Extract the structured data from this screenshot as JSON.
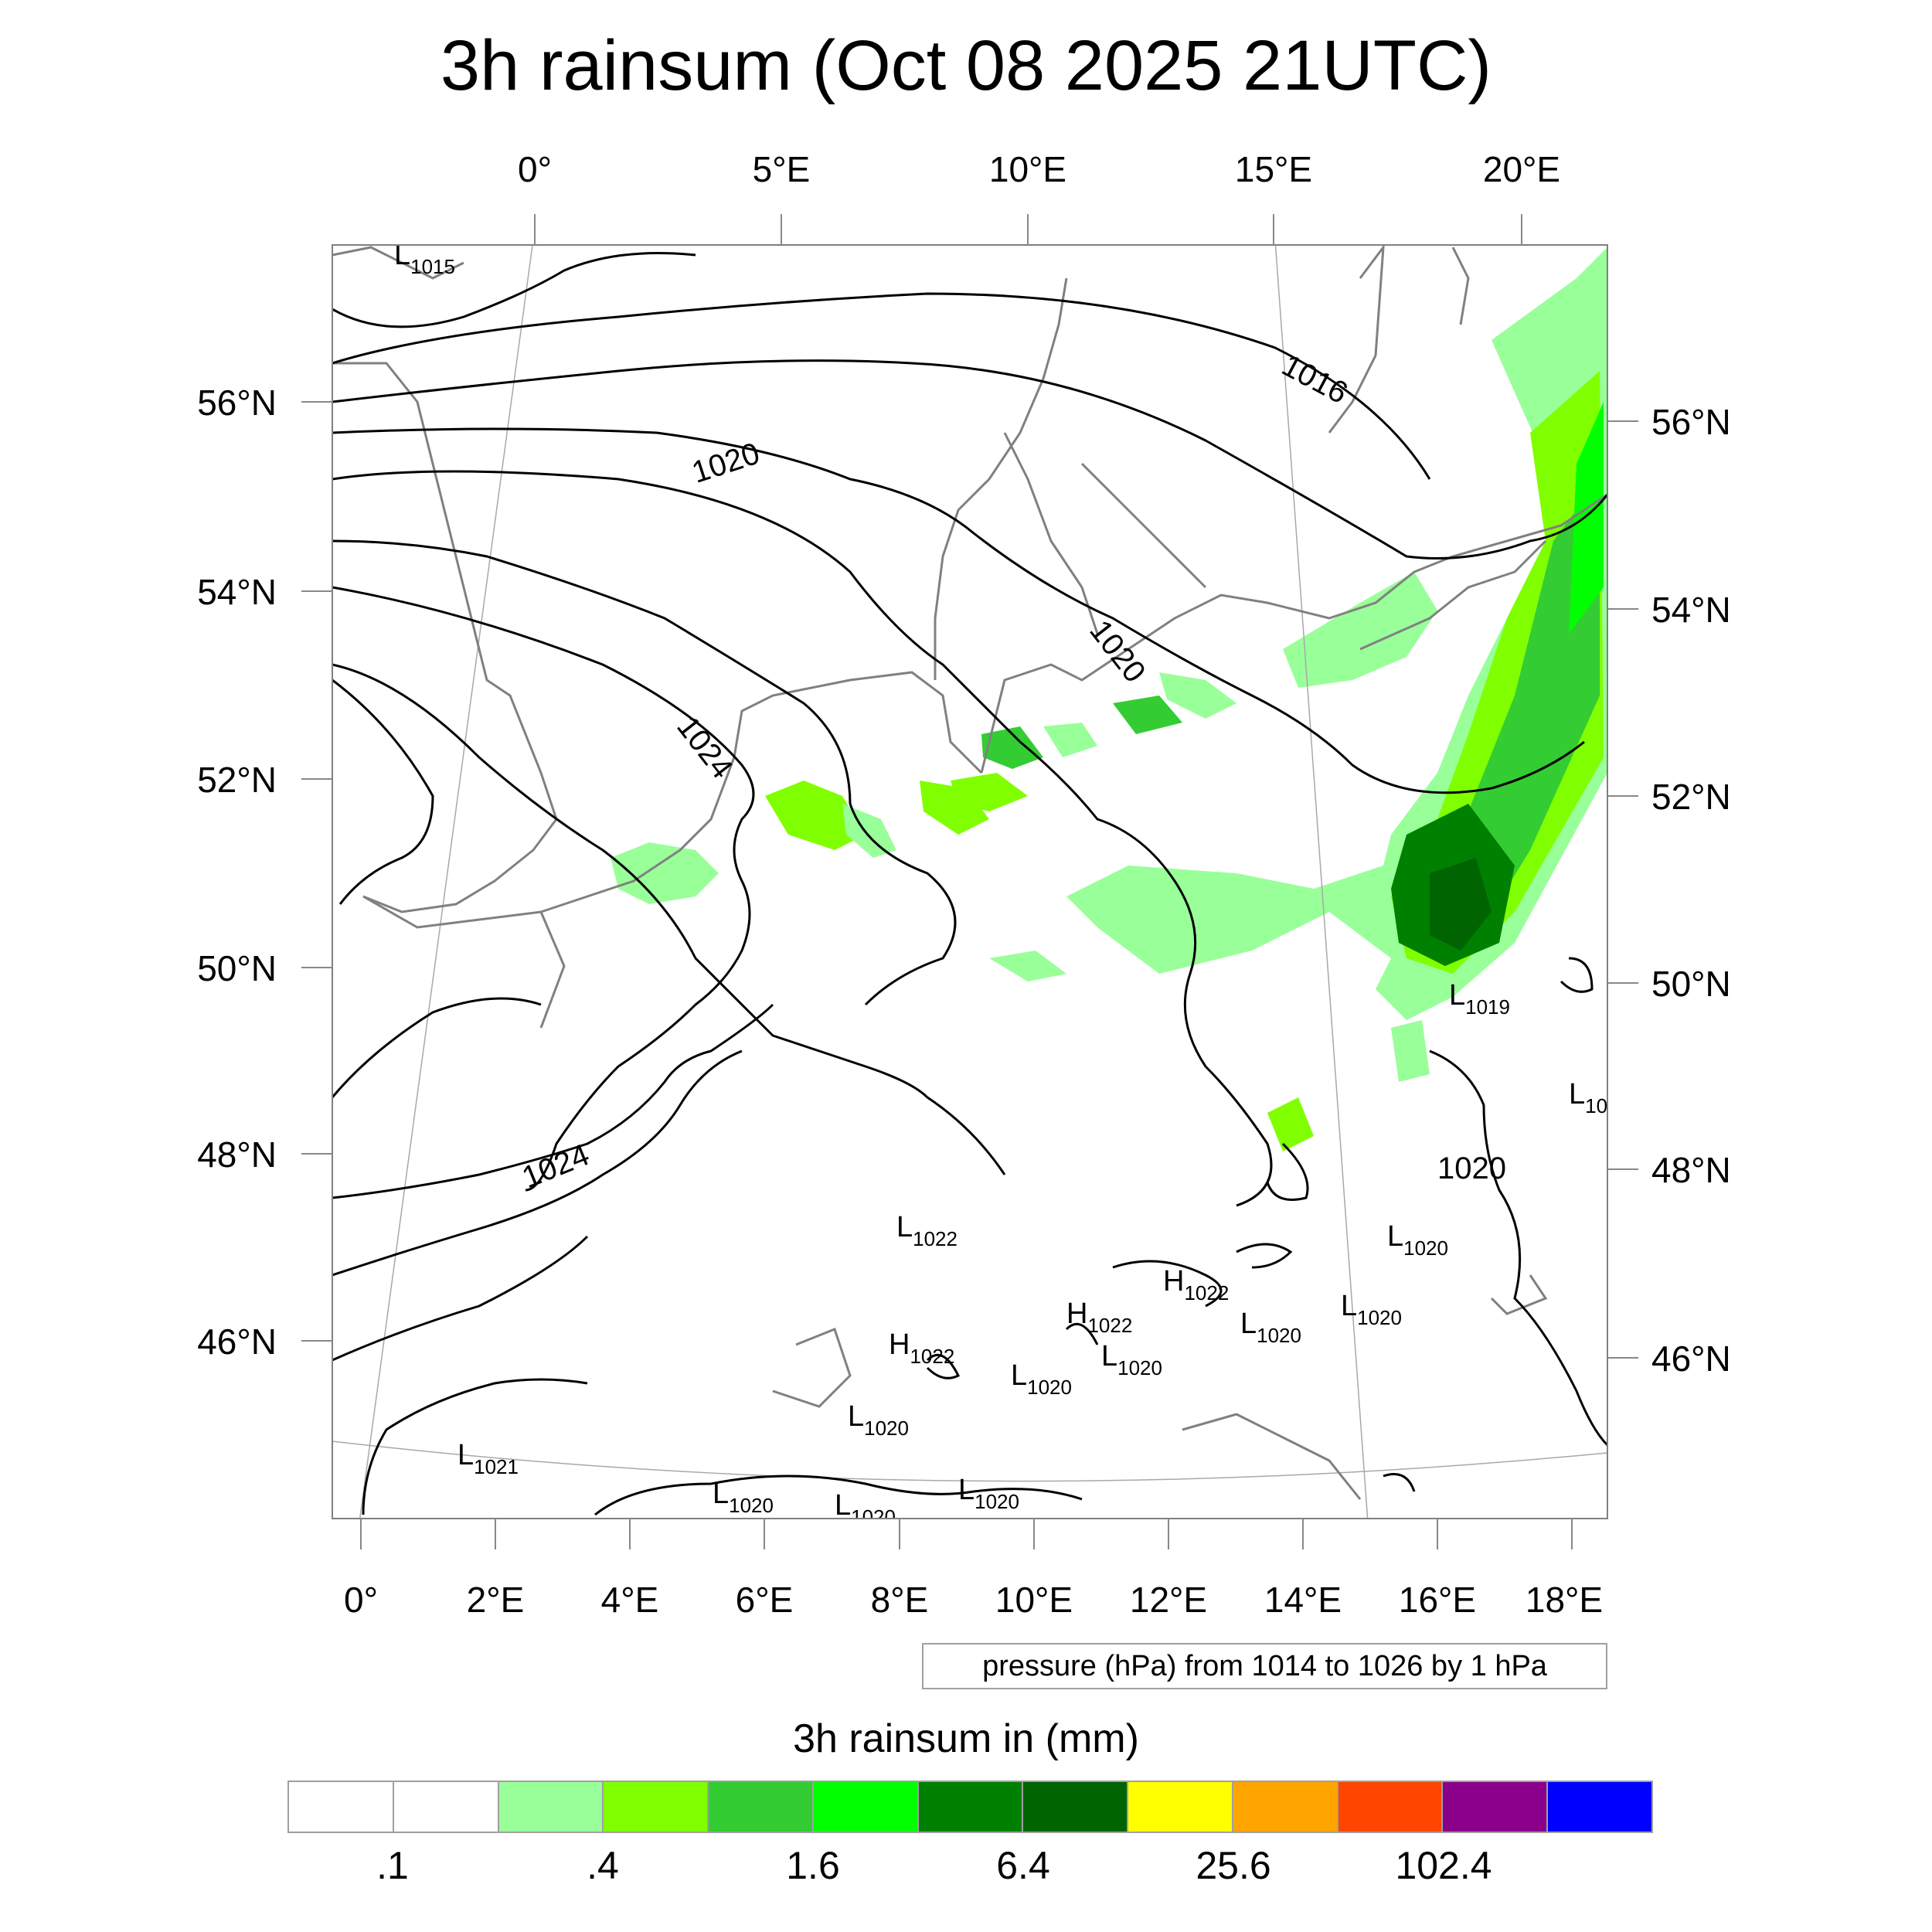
{
  "title": "3h rainsum (Oct 08 2025 21UTC)",
  "top_lon_labels": [
    "0°",
    "5°E",
    "10°E",
    "15°E",
    "20°E"
  ],
  "bottom_lon_labels": [
    "0°",
    "2°E",
    "4°E",
    "6°E",
    "8°E",
    "10°E",
    "12°E",
    "14°E",
    "16°E",
    "18°E"
  ],
  "left_lat_labels": [
    "56°N",
    "54°N",
    "52°N",
    "50°N",
    "48°N",
    "46°N"
  ],
  "right_lat_labels": [
    "56°N",
    "54°N",
    "52°N",
    "50°N",
    "48°N",
    "46°N"
  ],
  "contour_labels": [
    "1016",
    "1020",
    "1020",
    "1024",
    "1024",
    "1020"
  ],
  "pressure_centers": [
    {
      "type": "L",
      "value": "1015"
    },
    {
      "type": "L",
      "value": "1019"
    },
    {
      "type": "L",
      "value": "10"
    },
    {
      "type": "L",
      "value": "1022"
    },
    {
      "type": "L",
      "value": "1020"
    },
    {
      "type": "H",
      "value": "1022"
    },
    {
      "type": "L",
      "value": "1020"
    },
    {
      "type": "L",
      "value": "1020"
    },
    {
      "type": "H",
      "value": "1022"
    },
    {
      "type": "L",
      "value": "1020"
    },
    {
      "type": "H",
      "value": "1022"
    },
    {
      "type": "L",
      "value": "1020"
    },
    {
      "type": "L",
      "value": "1020"
    },
    {
      "type": "L",
      "value": "1021"
    },
    {
      "type": "L",
      "value": "1020"
    },
    {
      "type": "L",
      "value": "1020"
    },
    {
      "type": "L",
      "value": "1020"
    }
  ],
  "contour_info": "pressure (hPa) from 1014 to 1026 by 1 hPa",
  "colorbar": {
    "title": "3h rainsum in (mm)",
    "colors": [
      "#ffffff",
      "#ffffff",
      "#99ff99",
      "#80ff00",
      "#33cc33",
      "#00ff00",
      "#008000",
      "#006400",
      "#ffff00",
      "#ffa500",
      "#ff4500",
      "#8b008b",
      "#0000ff"
    ],
    "tick_labels": [
      ".1",
      ".4",
      "1.6",
      "6.4",
      "25.6",
      "102.4"
    ]
  }
}
